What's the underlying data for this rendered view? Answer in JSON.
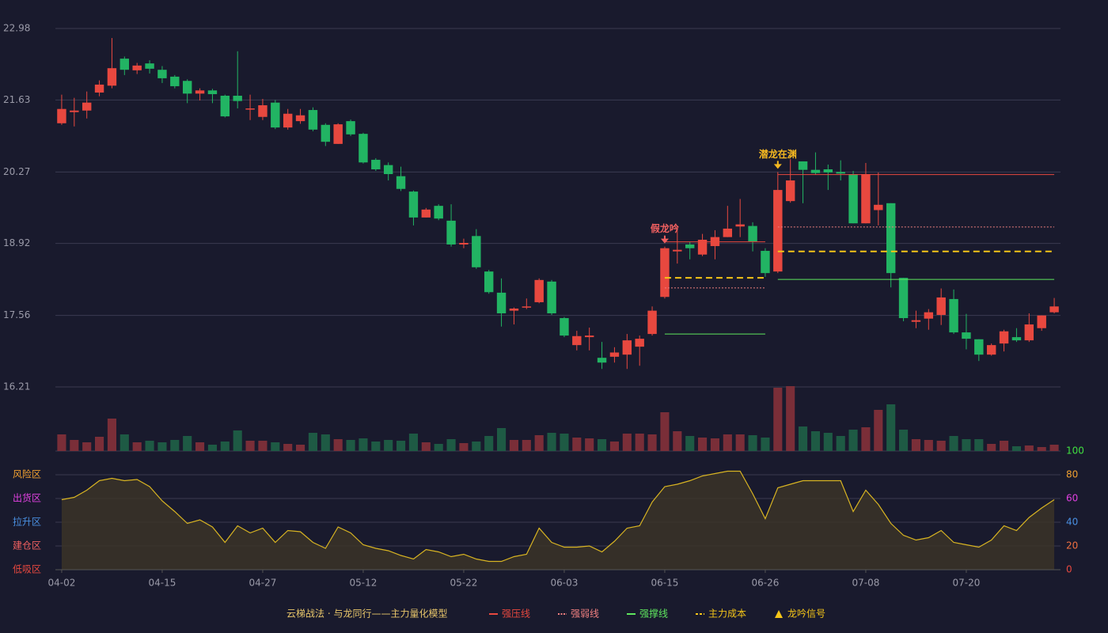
{
  "chart_data": {
    "type": "candlestick",
    "categories": [
      "04-02",
      null,
      null,
      null,
      null,
      null,
      null,
      null,
      "04-15",
      null,
      null,
      null,
      null,
      null,
      null,
      null,
      "04-27",
      null,
      null,
      null,
      null,
      null,
      null,
      null,
      "05-12",
      null,
      null,
      null,
      null,
      null,
      null,
      null,
      "05-22",
      null,
      null,
      null,
      null,
      null,
      null,
      null,
      "06-03",
      null,
      null,
      null,
      null,
      null,
      null,
      null,
      "06-15",
      null,
      null,
      null,
      null,
      null,
      null,
      null,
      "06-26",
      null,
      null,
      null,
      null,
      null,
      null,
      null,
      "07-08",
      null,
      null,
      null,
      null,
      null,
      null,
      null,
      "07-20",
      null,
      null,
      null,
      null,
      null,
      null,
      null
    ],
    "ylim": [
      16.21,
      22.98
    ],
    "yticks": [
      16.21,
      17.56,
      18.92,
      20.27,
      21.63,
      22.98
    ],
    "grid": true,
    "up_color": "#e8483f",
    "down_color": "#22b463",
    "open": [
      21.19,
      21.4,
      21.43,
      21.77,
      21.9,
      22.41,
      22.19,
      22.32,
      22.2,
      22.07,
      21.99,
      21.75,
      21.81,
      21.71,
      21.71,
      21.45,
      21.31,
      21.58,
      21.11,
      21.23,
      21.44,
      21.16,
      20.8,
      21.23,
      20.99,
      20.5,
      20.4,
      20.19,
      19.9,
      19.41,
      19.63,
      19.35,
      18.9,
      19.06,
      18.39,
      17.99,
      17.65,
      17.71,
      17.81,
      18.2,
      17.51,
      17.0,
      17.15,
      16.76,
      16.78,
      16.82,
      16.97,
      17.21,
      17.91,
      18.77,
      18.9,
      18.71,
      18.87,
      19.04,
      19.24,
      19.25,
      18.78,
      18.39,
      19.72,
      20.47,
      20.31,
      20.32,
      20.27,
      20.23,
      19.3,
      19.55,
      19.68,
      18.27,
      17.44,
      17.5,
      17.57,
      17.87,
      17.24,
      17.11,
      16.82,
      17.03,
      17.15,
      17.09,
      17.32,
      17.62
    ],
    "high": [
      21.73,
      21.67,
      21.79,
      22.0,
      22.8,
      22.45,
      22.33,
      22.38,
      22.27,
      22.1,
      22.02,
      21.85,
      21.84,
      21.73,
      22.55,
      21.73,
      21.65,
      21.63,
      21.46,
      21.46,
      21.49,
      21.19,
      21.19,
      21.26,
      21.01,
      20.53,
      20.45,
      20.37,
      19.92,
      19.59,
      19.66,
      19.66,
      19.01,
      19.19,
      18.42,
      18.26,
      17.71,
      17.88,
      18.26,
      18.23,
      17.53,
      17.27,
      17.33,
      17.06,
      16.96,
      17.21,
      17.18,
      17.73,
      18.86,
      19.26,
      18.95,
      19.1,
      19.17,
      19.63,
      19.76,
      19.32,
      18.83,
      20.27,
      20.51,
      20.47,
      20.64,
      20.41,
      20.49,
      20.29,
      20.44,
      20.26,
      19.68,
      18.27,
      17.65,
      17.68,
      18.07,
      18.05,
      17.59,
      17.11,
      17.03,
      17.29,
      17.32,
      17.6,
      17.56,
      17.89
    ],
    "low": [
      21.16,
      21.13,
      21.28,
      21.7,
      21.85,
      22.1,
      22.12,
      22.13,
      21.95,
      21.85,
      21.57,
      21.62,
      21.57,
      21.3,
      21.47,
      21.25,
      21.25,
      21.08,
      21.07,
      21.18,
      21.04,
      20.76,
      20.8,
      20.95,
      20.43,
      20.29,
      20.11,
      19.91,
      19.26,
      19.41,
      19.36,
      18.86,
      18.83,
      18.44,
      17.97,
      17.35,
      17.39,
      17.68,
      17.79,
      17.57,
      17.15,
      16.9,
      16.9,
      16.55,
      16.67,
      16.55,
      16.61,
      17.18,
      17.88,
      18.54,
      18.62,
      18.68,
      18.62,
      19.04,
      19.04,
      18.77,
      18.29,
      18.36,
      19.69,
      19.68,
      20.22,
      19.93,
      20.11,
      19.3,
      19.3,
      19.26,
      18.09,
      17.45,
      17.32,
      17.29,
      17.38,
      17.21,
      16.92,
      16.7,
      16.8,
      16.88,
      17.06,
      17.06,
      17.27,
      17.6
    ],
    "close": [
      21.46,
      21.43,
      21.58,
      21.92,
      22.23,
      22.2,
      22.28,
      22.22,
      22.04,
      21.89,
      21.75,
      21.81,
      21.74,
      21.32,
      21.61,
      21.47,
      21.53,
      21.11,
      21.37,
      21.34,
      21.07,
      20.84,
      21.17,
      20.98,
      20.45,
      20.32,
      20.23,
      19.95,
      19.41,
      19.56,
      19.39,
      18.9,
      18.93,
      18.47,
      18.0,
      17.6,
      17.69,
      17.73,
      18.23,
      17.6,
      17.18,
      17.17,
      17.18,
      16.67,
      16.86,
      17.09,
      17.12,
      17.65,
      18.83,
      18.8,
      18.83,
      18.99,
      19.04,
      19.2,
      19.28,
      18.96,
      18.36,
      19.93,
      20.11,
      20.31,
      20.25,
      20.26,
      20.24,
      19.3,
      20.23,
      19.65,
      18.36,
      17.51,
      17.47,
      17.62,
      17.9,
      17.24,
      17.12,
      16.82,
      17.0,
      17.26,
      17.09,
      17.39,
      17.56,
      17.73
    ],
    "levels": [
      {
        "name": "强压线",
        "color": "#e8483f",
        "style": "solid",
        "pieces": [
          {
            "from": 48,
            "to": 56,
            "value": 18.95
          },
          {
            "from": 57,
            "to": 79,
            "value": 20.22
          }
        ]
      },
      {
        "name": "强弱线",
        "color": "#f08080",
        "style": "dotted",
        "pieces": [
          {
            "from": 48,
            "to": 56,
            "value": 18.08
          },
          {
            "from": 57,
            "to": 79,
            "value": 19.23
          }
        ]
      },
      {
        "name": "强撑线",
        "color": "#5ee65e",
        "style": "solid",
        "pieces": [
          {
            "from": 48,
            "to": 56,
            "value": 17.21
          },
          {
            "from": 57,
            "to": 79,
            "value": 18.24
          }
        ]
      },
      {
        "name": "主力成本",
        "color": "#f5c518",
        "style": "dashed",
        "pieces": [
          {
            "from": 48,
            "to": 56,
            "value": 18.27
          },
          {
            "from": 57,
            "to": 79,
            "value": 18.77
          }
        ]
      }
    ],
    "signals_name": "龙吟信号",
    "signals_color": "#f5c518",
    "signals": [
      {
        "text": "假龙吟",
        "index": 48,
        "color": "#f06060"
      },
      {
        "text": "潜龙在渊",
        "index": 57,
        "color": "#f5b820"
      }
    ],
    "volume": {
      "values": [
        21,
        14,
        11,
        18,
        41,
        21,
        11,
        13,
        11,
        14,
        19,
        11,
        8,
        12,
        26,
        13,
        13,
        11,
        9,
        8,
        23,
        21,
        15,
        14,
        16,
        12,
        14,
        13,
        22,
        11,
        9,
        15,
        10,
        12,
        19,
        29,
        14,
        14,
        20,
        23,
        22,
        17,
        16,
        15,
        12,
        22,
        22,
        21,
        49,
        25,
        19,
        17,
        16,
        21,
        21,
        20,
        17,
        80,
        82,
        31,
        25,
        23,
        19,
        27,
        30,
        52,
        59,
        27,
        15,
        14,
        13,
        19,
        15,
        15,
        9,
        13,
        6,
        7,
        5,
        8
      ],
      "up_color": "#7a2e38",
      "down_color": "#1e5a44"
    },
    "indicator": {
      "type": "line",
      "values": [
        59,
        61,
        67,
        75,
        77,
        75,
        76,
        70,
        58,
        49,
        39,
        42,
        36,
        23,
        37,
        31,
        35,
        23,
        33,
        32,
        23,
        18,
        36,
        31,
        21,
        18,
        16,
        12,
        9,
        17,
        15,
        11,
        13,
        9,
        7,
        7,
        11,
        13,
        35,
        23,
        19,
        19,
        20,
        15,
        24,
        35,
        37,
        57,
        70,
        72,
        75,
        79,
        81,
        83,
        83,
        64,
        43,
        69,
        72,
        75,
        75,
        75,
        75,
        49,
        67,
        55,
        39,
        29,
        25,
        27,
        33,
        23,
        21,
        19,
        25,
        37,
        33,
        44,
        52,
        59
      ],
      "color": "#d8b422",
      "ylim": [
        0,
        100
      ],
      "yticks": [
        0,
        20,
        40,
        60,
        80,
        100
      ],
      "tick_colors": [
        "#e8483f",
        "#f07040",
        "#4a90e2",
        "#e040e0",
        "#f0a030",
        "#40e040"
      ],
      "zones": [
        {
          "label": "风险区",
          "value": 80,
          "color": "#f0a030"
        },
        {
          "label": "出货区",
          "value": 60,
          "color": "#e040e0"
        },
        {
          "label": "拉升区",
          "value": 40,
          "color": "#4a90e2"
        },
        {
          "label": "建仓区",
          "value": 20,
          "color": "#f06060"
        },
        {
          "label": "低吸区",
          "value": 0,
          "color": "#e8483f"
        }
      ]
    },
    "legend_title": "云梯战法 · 与龙同行——主力量化模型"
  }
}
